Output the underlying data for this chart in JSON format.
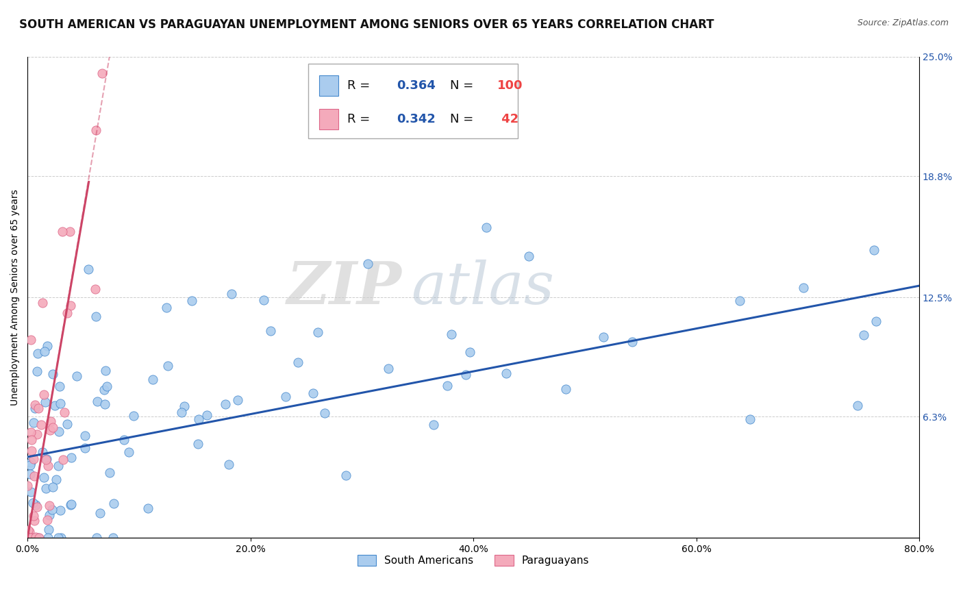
{
  "title": "SOUTH AMERICAN VS PARAGUAYAN UNEMPLOYMENT AMONG SENIORS OVER 65 YEARS CORRELATION CHART",
  "source": "Source: ZipAtlas.com",
  "ylabel": "Unemployment Among Seniors over 65 years",
  "xlim": [
    0,
    0.8
  ],
  "ylim": [
    0,
    0.25
  ],
  "xtick_labels": [
    "0.0%",
    "20.0%",
    "40.0%",
    "60.0%",
    "80.0%"
  ],
  "xtick_vals": [
    0.0,
    0.2,
    0.4,
    0.6,
    0.8
  ],
  "ytick_right_labels": [
    "6.3%",
    "12.5%",
    "18.8%",
    "25.0%"
  ],
  "ytick_right_vals": [
    0.063,
    0.125,
    0.188,
    0.25
  ],
  "watermark_zip": "ZIP",
  "watermark_atlas": "atlas",
  "blue_color": "#AACCEE",
  "pink_color": "#F4AABB",
  "blue_edge_color": "#4488CC",
  "pink_edge_color": "#DD6688",
  "blue_line_color": "#2255AA",
  "pink_line_color": "#CC4466",
  "title_fontsize": 12,
  "label_fontsize": 10,
  "tick_fontsize": 10,
  "series1_label": "South Americans",
  "series2_label": "Paraguayans",
  "blue_R": "0.364",
  "blue_N": "100",
  "pink_R": "0.342",
  "pink_N": " 42",
  "seed": 77,
  "blue_trend_x0": 0.0,
  "blue_trend_y0": 0.042,
  "blue_trend_x1": 0.8,
  "blue_trend_y1": 0.131,
  "pink_trend_solid_x0": 0.0,
  "pink_trend_solid_y0": 0.0,
  "pink_trend_solid_x1": 0.055,
  "pink_trend_solid_y1": 0.185,
  "pink_trend_dash_x0": 0.0,
  "pink_trend_dash_y0": 0.0,
  "pink_trend_dash_x1": 0.075,
  "pink_trend_dash_y1": 0.255
}
